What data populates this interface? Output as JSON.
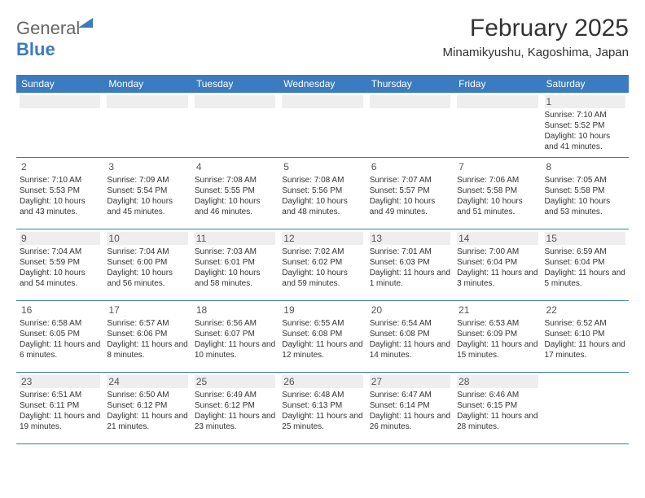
{
  "brand": {
    "part1": "General",
    "part2": "Blue"
  },
  "title": "February 2025",
  "location": "Minamikyushu, Kagoshima, Japan",
  "colors": {
    "header_bg": "#3b7bbf",
    "text": "#333333",
    "alt_row": "#eeeeee"
  },
  "weekdays": [
    "Sunday",
    "Monday",
    "Tuesday",
    "Wednesday",
    "Thursday",
    "Friday",
    "Saturday"
  ],
  "weeks": [
    [
      {
        "day": "",
        "sunrise": "",
        "sunset": "",
        "daylight": ""
      },
      {
        "day": "",
        "sunrise": "",
        "sunset": "",
        "daylight": ""
      },
      {
        "day": "",
        "sunrise": "",
        "sunset": "",
        "daylight": ""
      },
      {
        "day": "",
        "sunrise": "",
        "sunset": "",
        "daylight": ""
      },
      {
        "day": "",
        "sunrise": "",
        "sunset": "",
        "daylight": ""
      },
      {
        "day": "",
        "sunrise": "",
        "sunset": "",
        "daylight": ""
      },
      {
        "day": "1",
        "sunrise": "Sunrise: 7:10 AM",
        "sunset": "Sunset: 5:52 PM",
        "daylight": "Daylight: 10 hours and 41 minutes."
      }
    ],
    [
      {
        "day": "2",
        "sunrise": "Sunrise: 7:10 AM",
        "sunset": "Sunset: 5:53 PM",
        "daylight": "Daylight: 10 hours and 43 minutes."
      },
      {
        "day": "3",
        "sunrise": "Sunrise: 7:09 AM",
        "sunset": "Sunset: 5:54 PM",
        "daylight": "Daylight: 10 hours and 45 minutes."
      },
      {
        "day": "4",
        "sunrise": "Sunrise: 7:08 AM",
        "sunset": "Sunset: 5:55 PM",
        "daylight": "Daylight: 10 hours and 46 minutes."
      },
      {
        "day": "5",
        "sunrise": "Sunrise: 7:08 AM",
        "sunset": "Sunset: 5:56 PM",
        "daylight": "Daylight: 10 hours and 48 minutes."
      },
      {
        "day": "6",
        "sunrise": "Sunrise: 7:07 AM",
        "sunset": "Sunset: 5:57 PM",
        "daylight": "Daylight: 10 hours and 49 minutes."
      },
      {
        "day": "7",
        "sunrise": "Sunrise: 7:06 AM",
        "sunset": "Sunset: 5:58 PM",
        "daylight": "Daylight: 10 hours and 51 minutes."
      },
      {
        "day": "8",
        "sunrise": "Sunrise: 7:05 AM",
        "sunset": "Sunset: 5:58 PM",
        "daylight": "Daylight: 10 hours and 53 minutes."
      }
    ],
    [
      {
        "day": "9",
        "sunrise": "Sunrise: 7:04 AM",
        "sunset": "Sunset: 5:59 PM",
        "daylight": "Daylight: 10 hours and 54 minutes."
      },
      {
        "day": "10",
        "sunrise": "Sunrise: 7:04 AM",
        "sunset": "Sunset: 6:00 PM",
        "daylight": "Daylight: 10 hours and 56 minutes."
      },
      {
        "day": "11",
        "sunrise": "Sunrise: 7:03 AM",
        "sunset": "Sunset: 6:01 PM",
        "daylight": "Daylight: 10 hours and 58 minutes."
      },
      {
        "day": "12",
        "sunrise": "Sunrise: 7:02 AM",
        "sunset": "Sunset: 6:02 PM",
        "daylight": "Daylight: 10 hours and 59 minutes."
      },
      {
        "day": "13",
        "sunrise": "Sunrise: 7:01 AM",
        "sunset": "Sunset: 6:03 PM",
        "daylight": "Daylight: 11 hours and 1 minute."
      },
      {
        "day": "14",
        "sunrise": "Sunrise: 7:00 AM",
        "sunset": "Sunset: 6:04 PM",
        "daylight": "Daylight: 11 hours and 3 minutes."
      },
      {
        "day": "15",
        "sunrise": "Sunrise: 6:59 AM",
        "sunset": "Sunset: 6:04 PM",
        "daylight": "Daylight: 11 hours and 5 minutes."
      }
    ],
    [
      {
        "day": "16",
        "sunrise": "Sunrise: 6:58 AM",
        "sunset": "Sunset: 6:05 PM",
        "daylight": "Daylight: 11 hours and 6 minutes."
      },
      {
        "day": "17",
        "sunrise": "Sunrise: 6:57 AM",
        "sunset": "Sunset: 6:06 PM",
        "daylight": "Daylight: 11 hours and 8 minutes."
      },
      {
        "day": "18",
        "sunrise": "Sunrise: 6:56 AM",
        "sunset": "Sunset: 6:07 PM",
        "daylight": "Daylight: 11 hours and 10 minutes."
      },
      {
        "day": "19",
        "sunrise": "Sunrise: 6:55 AM",
        "sunset": "Sunset: 6:08 PM",
        "daylight": "Daylight: 11 hours and 12 minutes."
      },
      {
        "day": "20",
        "sunrise": "Sunrise: 6:54 AM",
        "sunset": "Sunset: 6:08 PM",
        "daylight": "Daylight: 11 hours and 14 minutes."
      },
      {
        "day": "21",
        "sunrise": "Sunrise: 6:53 AM",
        "sunset": "Sunset: 6:09 PM",
        "daylight": "Daylight: 11 hours and 15 minutes."
      },
      {
        "day": "22",
        "sunrise": "Sunrise: 6:52 AM",
        "sunset": "Sunset: 6:10 PM",
        "daylight": "Daylight: 11 hours and 17 minutes."
      }
    ],
    [
      {
        "day": "23",
        "sunrise": "Sunrise: 6:51 AM",
        "sunset": "Sunset: 6:11 PM",
        "daylight": "Daylight: 11 hours and 19 minutes."
      },
      {
        "day": "24",
        "sunrise": "Sunrise: 6:50 AM",
        "sunset": "Sunset: 6:12 PM",
        "daylight": "Daylight: 11 hours and 21 minutes."
      },
      {
        "day": "25",
        "sunrise": "Sunrise: 6:49 AM",
        "sunset": "Sunset: 6:12 PM",
        "daylight": "Daylight: 11 hours and 23 minutes."
      },
      {
        "day": "26",
        "sunrise": "Sunrise: 6:48 AM",
        "sunset": "Sunset: 6:13 PM",
        "daylight": "Daylight: 11 hours and 25 minutes."
      },
      {
        "day": "27",
        "sunrise": "Sunrise: 6:47 AM",
        "sunset": "Sunset: 6:14 PM",
        "daylight": "Daylight: 11 hours and 26 minutes."
      },
      {
        "day": "28",
        "sunrise": "Sunrise: 6:46 AM",
        "sunset": "Sunset: 6:15 PM",
        "daylight": "Daylight: 11 hours and 28 minutes."
      },
      {
        "day": "",
        "sunrise": "",
        "sunset": "",
        "daylight": ""
      }
    ]
  ]
}
